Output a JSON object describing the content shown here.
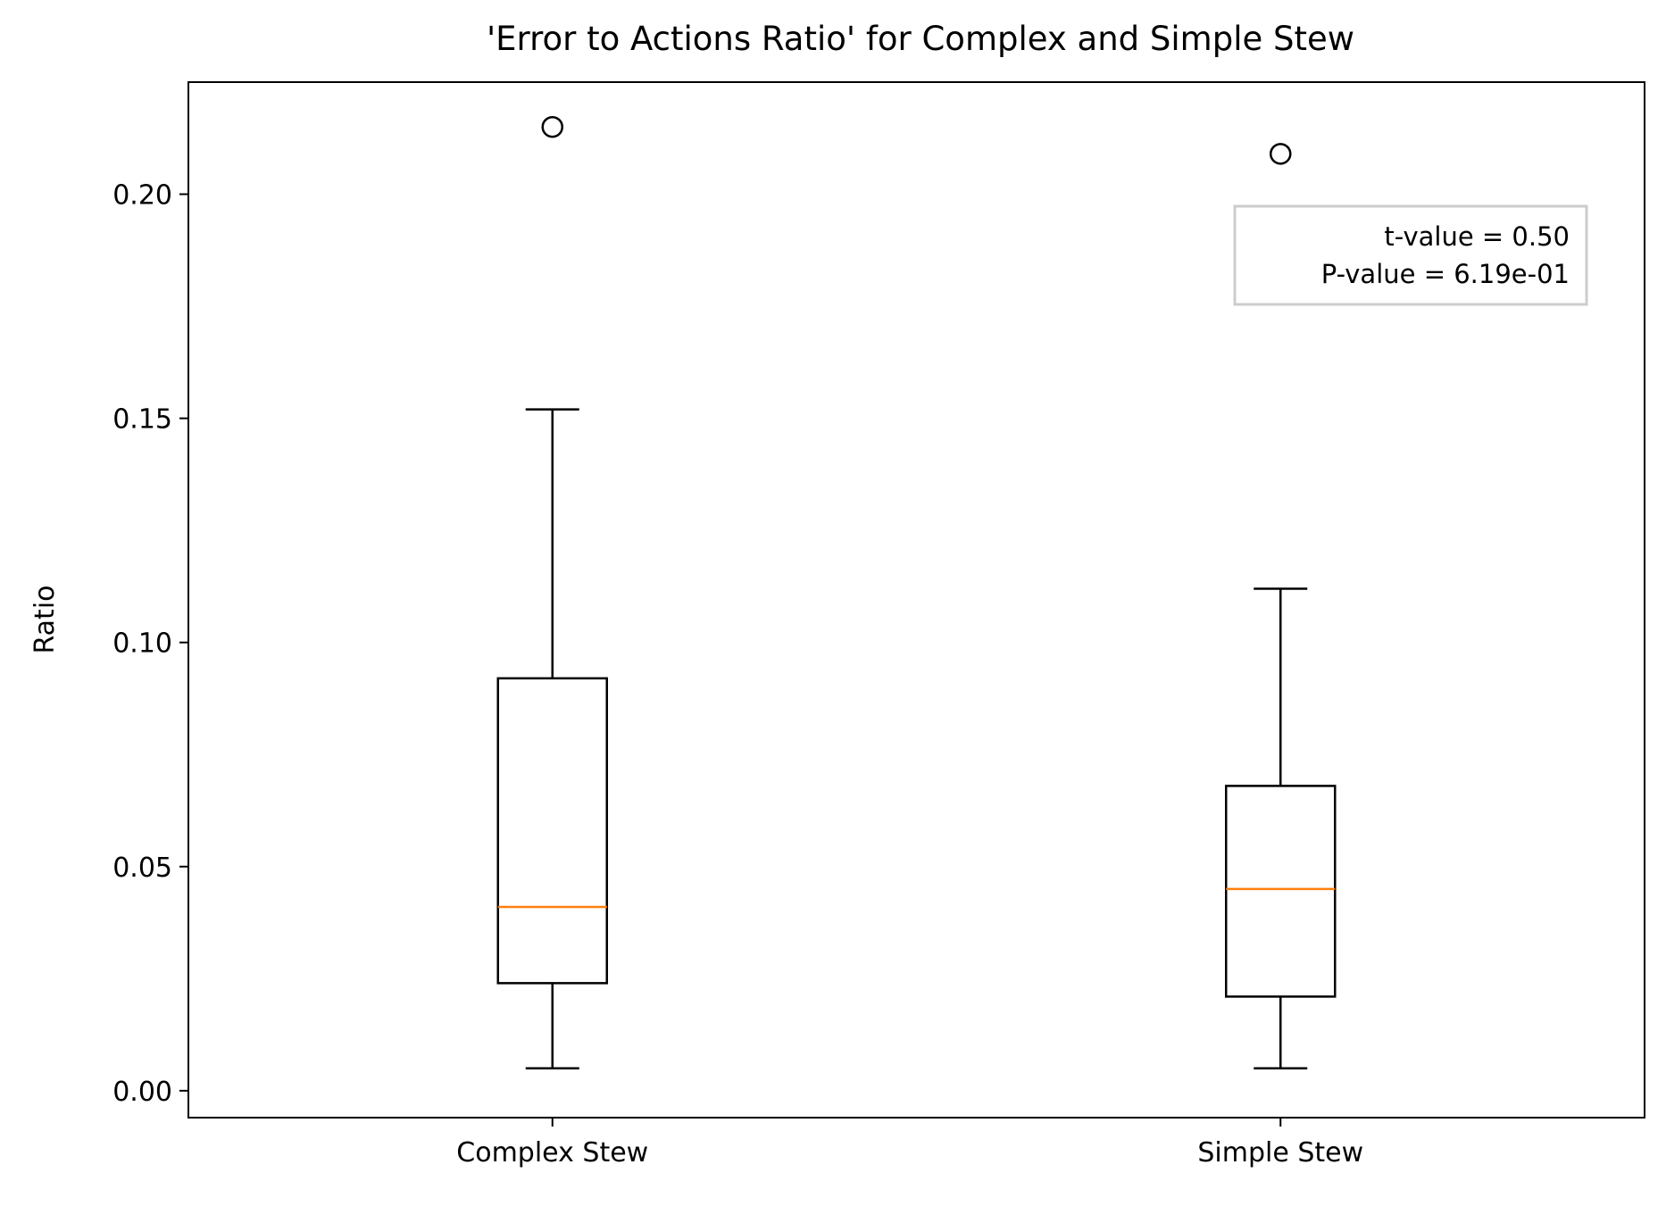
{
  "chart_data": {
    "type": "box",
    "title": "'Error to Actions Ratio' for Complex and Simple Stew",
    "xlabel": "",
    "ylabel": "Ratio",
    "ylim": [
      -0.006,
      0.225
    ],
    "yticks": [
      {
        "value": 0.0,
        "label": "0.00"
      },
      {
        "value": 0.05,
        "label": "0.05"
      },
      {
        "value": 0.1,
        "label": "0.10"
      },
      {
        "value": 0.15,
        "label": "0.15"
      },
      {
        "value": 0.2,
        "label": "0.20"
      }
    ],
    "grid": false,
    "categories": [
      "Complex Stew",
      "Simple Stew"
    ],
    "boxes": [
      {
        "category": "Complex Stew",
        "whisker_low": 0.005,
        "q1": 0.024,
        "median": 0.041,
        "q3": 0.092,
        "whisker_high": 0.152,
        "outliers": [
          0.215
        ]
      },
      {
        "category": "Simple Stew",
        "whisker_low": 0.005,
        "q1": 0.021,
        "median": 0.045,
        "q3": 0.068,
        "whisker_high": 0.112,
        "outliers": [
          0.209
        ]
      }
    ],
    "annotation": {
      "lines": [
        "t-value = 0.50",
        "P-value = 6.19e-01"
      ],
      "placement": "top-right"
    },
    "colors": {
      "box": "#000000",
      "median": "#ff7f0e",
      "annotation_border": "#cccccc"
    }
  }
}
